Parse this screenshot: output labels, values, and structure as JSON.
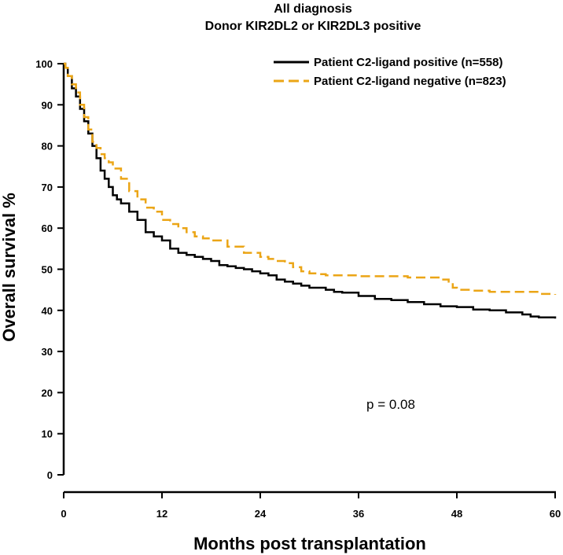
{
  "chart_data": {
    "type": "line",
    "subtype": "kaplan-meier step curve",
    "title": [
      "All diagnosis",
      "Donor KIR2DL2 or KIR2DL3 positive"
    ],
    "xlabel": "Months post transplantation",
    "ylabel": "Overall survival %",
    "xlim": [
      0,
      60
    ],
    "ylim": [
      0,
      100
    ],
    "xticks": [
      0,
      12,
      24,
      36,
      48,
      60
    ],
    "yticks": [
      0,
      10,
      20,
      30,
      40,
      50,
      60,
      70,
      80,
      90,
      100
    ],
    "grid": false,
    "legend_position": "top-right",
    "annotation": "p = 0.08",
    "series": [
      {
        "name": "Patient C2-ligand positive (n=558)",
        "color": "#000000",
        "line_style": "solid",
        "x": [
          0,
          0.2,
          0.5,
          1,
          1.5,
          2,
          2.5,
          3,
          3.5,
          4,
          4.5,
          5,
          5.5,
          6,
          6.5,
          7,
          8,
          9,
          10,
          11,
          12,
          13,
          14,
          15,
          16,
          17,
          18,
          19,
          20,
          21,
          22,
          23,
          24,
          25,
          26,
          27,
          28,
          29,
          30,
          32,
          33,
          34,
          36,
          38,
          40,
          42,
          44,
          46,
          48,
          50,
          52,
          54,
          56,
          57,
          58,
          59,
          60
        ],
        "values": [
          100,
          99,
          97,
          94,
          92,
          89,
          86,
          83,
          80,
          77,
          74,
          72,
          70,
          68,
          67,
          66,
          64,
          62,
          59,
          58,
          57,
          55,
          54,
          53.5,
          53,
          52.5,
          52,
          51,
          50.7,
          50.3,
          50,
          49.5,
          49,
          48.5,
          47.5,
          47,
          46.5,
          46,
          45.5,
          45,
          44.5,
          44.3,
          43.5,
          42.8,
          42.5,
          42,
          41.5,
          41,
          40.8,
          40.2,
          40,
          39.5,
          39,
          38.5,
          38.3,
          38.3,
          38
        ]
      },
      {
        "name": "Patient C2-ligand negative (n=823)",
        "color": "#EBA516",
        "line_style": "dashed",
        "x": [
          0,
          0.2,
          0.5,
          1,
          1.5,
          2,
          2.5,
          3,
          3.5,
          4,
          4.5,
          5,
          5.5,
          6,
          7,
          8,
          9,
          10,
          11,
          12,
          13,
          14,
          15,
          16,
          17,
          18,
          20,
          22,
          24,
          25,
          26,
          27,
          28,
          29,
          30,
          31,
          32,
          34,
          36,
          38,
          40,
          42,
          44,
          46,
          47,
          47.5,
          48,
          50,
          52,
          54,
          56,
          58,
          60
        ],
        "values": [
          100,
          99,
          97,
          95,
          93,
          90,
          87,
          84,
          81,
          79.5,
          78,
          77,
          76,
          74.5,
          72,
          69,
          67,
          65,
          64,
          62,
          61,
          60,
          59,
          58,
          57.5,
          57,
          55.5,
          54,
          53,
          52.5,
          52,
          51.5,
          50.5,
          49.5,
          49,
          48.8,
          48.5,
          48.5,
          48.3,
          48.3,
          48.3,
          48,
          48,
          47.5,
          47,
          45.5,
          45,
          44.8,
          44.5,
          44.5,
          44.5,
          44,
          43.8
        ]
      }
    ]
  }
}
